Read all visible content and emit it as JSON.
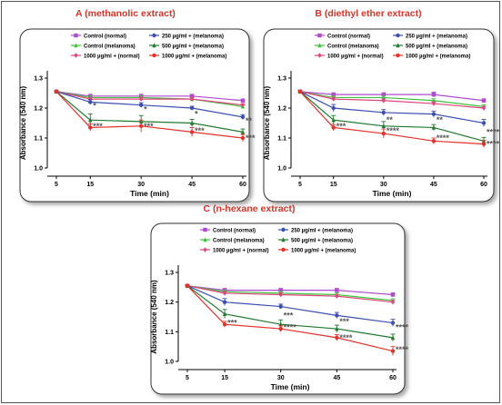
{
  "colors": {
    "title_red": "#d6332a",
    "axis": "#000000",
    "control_normal": "#b04ad0",
    "control_melanoma": "#3cc43c",
    "normal_1000": "#e0447a",
    "melanoma_250": "#3a4fb0",
    "melanoma_500": "#1f7a2c",
    "melanoma_1000": "#e4312a"
  },
  "legend_labels": [
    "Control (normal)",
    "250 µg/ml + (melanoma)",
    "Control (melanoma)",
    "500 µg/ml + (melanoma)",
    "1000 µg/ml + (normal)",
    "1000 µg/ml + (melanoma)"
  ],
  "chart_data": [
    {
      "type": "line",
      "title": "A (methanolic extract)",
      "xlabel": "Time (min)",
      "ylabel": "Absorbance (540 nm)",
      "x": [
        5,
        15,
        30,
        45,
        60
      ],
      "xticks": [
        "5",
        "15",
        "30",
        "45",
        "60"
      ],
      "yticks": [
        "1.0",
        "1.1",
        "1.2",
        "1.3"
      ],
      "ylim": [
        1.0,
        1.3
      ],
      "legend": "top-right",
      "series": [
        {
          "name": "Control (normal)",
          "values": [
            1.255,
            1.24,
            1.24,
            1.24,
            1.225
          ],
          "err": [
            0.003,
            0.006,
            0.006,
            0.006,
            0.005
          ]
        },
        {
          "name": "Control (melanoma)",
          "values": [
            1.255,
            1.235,
            1.235,
            1.23,
            1.205
          ],
          "err": [
            0.003,
            0.006,
            0.006,
            0.006,
            0.006
          ]
        },
        {
          "name": "1000 µg/ml + (normal)",
          "values": [
            1.255,
            1.23,
            1.23,
            1.23,
            1.21
          ],
          "err": [
            0.003,
            0.006,
            0.006,
            0.006,
            0.005
          ]
        },
        {
          "name": "250 µg/ml + (melanoma)",
          "values": [
            1.255,
            1.22,
            1.21,
            1.2,
            1.17
          ],
          "err": [
            0.003,
            0.008,
            0.008,
            0.006,
            0.008
          ]
        },
        {
          "name": "500 µg/ml + (melanoma)",
          "values": [
            1.255,
            1.16,
            1.155,
            1.15,
            1.12
          ],
          "err": [
            0.003,
            0.02,
            0.02,
            0.012,
            0.01
          ]
        },
        {
          "name": "1000 µg/ml + (melanoma)",
          "values": [
            1.255,
            1.135,
            1.14,
            1.12,
            1.1
          ],
          "err": [
            0.003,
            0.012,
            0.02,
            0.015,
            0.012
          ]
        }
      ],
      "annotations": [
        {
          "text": "*",
          "x": 15,
          "y": 1.208
        },
        {
          "text": "***",
          "x": 15,
          "y": 1.14
        },
        {
          "text": "*",
          "x": 30,
          "y": 1.195
        },
        {
          "text": "***",
          "x": 30,
          "y": 1.14
        },
        {
          "text": "*",
          "x": 45,
          "y": 1.18
        },
        {
          "text": "***",
          "x": 45,
          "y": 1.125
        },
        {
          "text": "**",
          "x": 60,
          "y": 1.158
        },
        {
          "text": "***",
          "x": 60,
          "y": 1.1
        }
      ]
    },
    {
      "type": "line",
      "title": "B (diethyl ether extract)",
      "xlabel": "Time (min)",
      "ylabel": "Absorbance (540 nm)",
      "x": [
        5,
        15,
        30,
        45,
        60
      ],
      "xticks": [
        "5",
        "15",
        "30",
        "45",
        "60"
      ],
      "yticks": [
        "1.0",
        "1.1",
        "1.2",
        "1.3"
      ],
      "ylim": [
        1.0,
        1.3
      ],
      "legend": "top-right",
      "series": [
        {
          "name": "Control (normal)",
          "values": [
            1.255,
            1.245,
            1.245,
            1.245,
            1.225
          ],
          "err": [
            0.003,
            0.006,
            0.006,
            0.008,
            0.006
          ]
        },
        {
          "name": "Control (melanoma)",
          "values": [
            1.255,
            1.235,
            1.235,
            1.225,
            1.205
          ],
          "err": [
            0.003,
            0.006,
            0.006,
            0.006,
            0.006
          ]
        },
        {
          "name": "1000 µg/ml + (normal)",
          "values": [
            1.255,
            1.23,
            1.225,
            1.215,
            1.2
          ],
          "err": [
            0.003,
            0.006,
            0.006,
            0.006,
            0.006
          ]
        },
        {
          "name": "250 µg/ml + (melanoma)",
          "values": [
            1.255,
            1.2,
            1.185,
            1.18,
            1.15
          ],
          "err": [
            0.003,
            0.012,
            0.01,
            0.01,
            0.012
          ]
        },
        {
          "name": "500 µg/ml + (melanoma)",
          "values": [
            1.255,
            1.16,
            1.14,
            1.135,
            1.09
          ],
          "err": [
            0.003,
            0.015,
            0.015,
            0.01,
            0.012
          ]
        },
        {
          "name": "1000 µg/ml + (melanoma)",
          "values": [
            1.255,
            1.135,
            1.115,
            1.09,
            1.08
          ],
          "err": [
            0.003,
            0.01,
            0.015,
            0.01,
            0.012
          ]
        }
      ],
      "annotations": [
        {
          "text": "***",
          "x": 15,
          "y": 1.14
        },
        {
          "text": "**",
          "x": 30,
          "y": 1.16
        },
        {
          "text": "****",
          "x": 30,
          "y": 1.125
        },
        {
          "text": "**",
          "x": 45,
          "y": 1.16
        },
        {
          "text": "****",
          "x": 45,
          "y": 1.1
        },
        {
          "text": "****",
          "x": 60,
          "y": 1.12
        },
        {
          "text": "****",
          "x": 60,
          "y": 1.08
        }
      ]
    },
    {
      "type": "line",
      "title": "C (n-hexane extract)",
      "xlabel": "Time (min)",
      "ylabel": "Absorbance (540 nm)",
      "x": [
        5,
        15,
        30,
        45,
        60
      ],
      "xticks": [
        "5",
        "15",
        "30",
        "45",
        "60"
      ],
      "yticks": [
        "1.0",
        "1.1",
        "1.2",
        "1.3"
      ],
      "ylim": [
        1.0,
        1.3
      ],
      "legend": "top-right",
      "series": [
        {
          "name": "Control (normal)",
          "values": [
            1.255,
            1.24,
            1.24,
            1.24,
            1.225
          ],
          "err": [
            0.003,
            0.006,
            0.006,
            0.006,
            0.006
          ]
        },
        {
          "name": "Control (melanoma)",
          "values": [
            1.255,
            1.235,
            1.23,
            1.225,
            1.205
          ],
          "err": [
            0.003,
            0.006,
            0.006,
            0.006,
            0.006
          ]
        },
        {
          "name": "1000 µg/ml + (normal)",
          "values": [
            1.255,
            1.23,
            1.225,
            1.22,
            1.2
          ],
          "err": [
            0.003,
            0.006,
            0.006,
            0.006,
            0.006
          ]
        },
        {
          "name": "250 µg/ml + (melanoma)",
          "values": [
            1.255,
            1.2,
            1.185,
            1.155,
            1.13
          ],
          "err": [
            0.003,
            0.012,
            0.008,
            0.01,
            0.012
          ]
        },
        {
          "name": "500 µg/ml + (melanoma)",
          "values": [
            1.255,
            1.16,
            1.125,
            1.11,
            1.08
          ],
          "err": [
            0.003,
            0.015,
            0.015,
            0.012,
            0.012
          ]
        },
        {
          "name": "1000 µg/ml + (melanoma)",
          "values": [
            1.255,
            1.125,
            1.11,
            1.08,
            1.035
          ],
          "err": [
            0.003,
            0.01,
            0.01,
            0.01,
            0.015
          ]
        }
      ],
      "annotations": [
        {
          "text": "***",
          "x": 15,
          "y": 1.13
        },
        {
          "text": "***",
          "x": 30,
          "y": 1.155
        },
        {
          "text": "****",
          "x": 30,
          "y": 1.115
        },
        {
          "text": "***",
          "x": 45,
          "y": 1.135
        },
        {
          "text": "****",
          "x": 45,
          "y": 1.08
        },
        {
          "text": "****",
          "x": 60,
          "y": 1.115
        },
        {
          "text": "****",
          "x": 60,
          "y": 1.04
        }
      ]
    }
  ]
}
